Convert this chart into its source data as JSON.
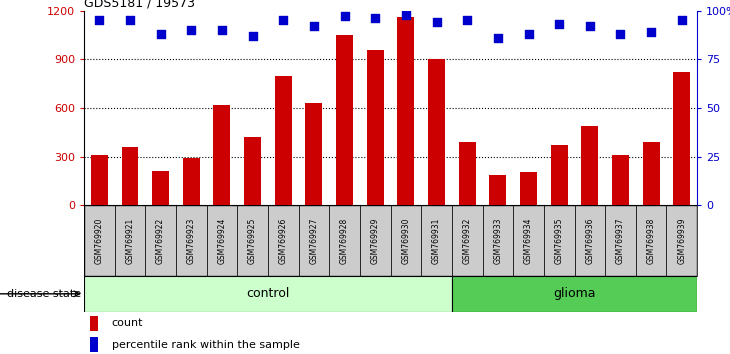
{
  "title": "GDS5181 / 19573",
  "samples": [
    "GSM769920",
    "GSM769921",
    "GSM769922",
    "GSM769923",
    "GSM769924",
    "GSM769925",
    "GSM769926",
    "GSM769927",
    "GSM769928",
    "GSM769929",
    "GSM769930",
    "GSM769931",
    "GSM769932",
    "GSM769933",
    "GSM769934",
    "GSM769935",
    "GSM769936",
    "GSM769937",
    "GSM769938",
    "GSM769939"
  ],
  "counts": [
    310,
    360,
    210,
    290,
    620,
    420,
    800,
    630,
    1050,
    960,
    1160,
    900,
    390,
    185,
    205,
    370,
    490,
    310,
    390,
    820
  ],
  "percentiles": [
    95,
    95,
    88,
    90,
    90,
    87,
    95,
    92,
    97,
    96,
    98,
    94,
    95,
    86,
    88,
    93,
    92,
    88,
    89,
    95
  ],
  "control_count": 12,
  "glioma_count": 8,
  "ylim_left": [
    0,
    1200
  ],
  "ylim_right": [
    0,
    100
  ],
  "yticks_left": [
    0,
    300,
    600,
    900,
    1200
  ],
  "yticks_right": [
    0,
    25,
    50,
    75,
    100
  ],
  "bar_color": "#cc0000",
  "dot_color": "#0000cc",
  "control_bg": "#ccffcc",
  "glioma_bg": "#55cc55",
  "label_bg": "#cccccc",
  "legend_count_label": "count",
  "legend_pct_label": "percentile rank within the sample",
  "disease_state_label": "disease state",
  "control_label": "control",
  "glioma_label": "glioma",
  "bar_width": 0.55,
  "dot_size": 40,
  "fig_width": 7.3,
  "fig_height": 3.54,
  "dpi": 100
}
